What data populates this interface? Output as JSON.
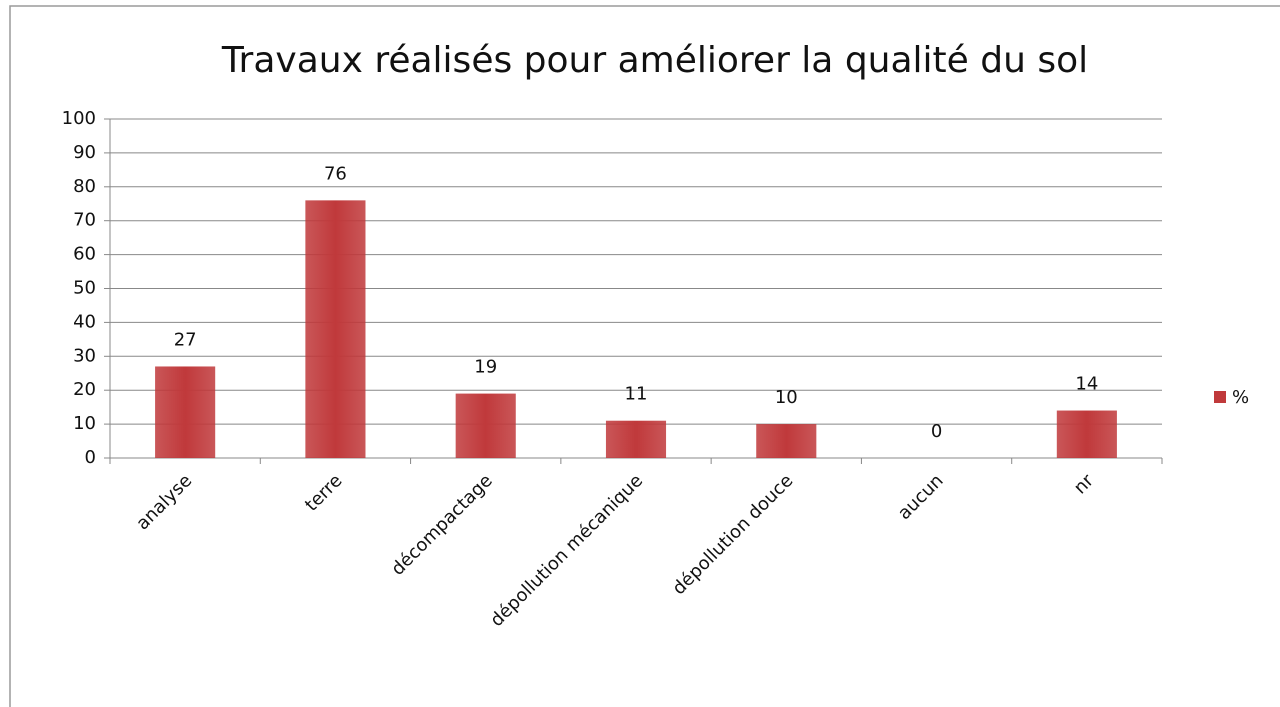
{
  "chart_data": {
    "type": "bar",
    "title": "Travaux réalisés pour améliorer la qualité du sol",
    "categories": [
      "analyse",
      "terre",
      "décompactage",
      "dépollution mécanique",
      "dépollution douce",
      "aucun",
      "nr"
    ],
    "series": [
      {
        "name": "%",
        "color": "#c0393b",
        "values": [
          27,
          76,
          19,
          11,
          10,
          0,
          14
        ]
      }
    ],
    "ylim": [
      0,
      100
    ],
    "yticks": [
      0,
      10,
      20,
      30,
      40,
      50,
      60,
      70,
      80,
      90,
      100
    ],
    "grid": true,
    "legend": "right"
  }
}
